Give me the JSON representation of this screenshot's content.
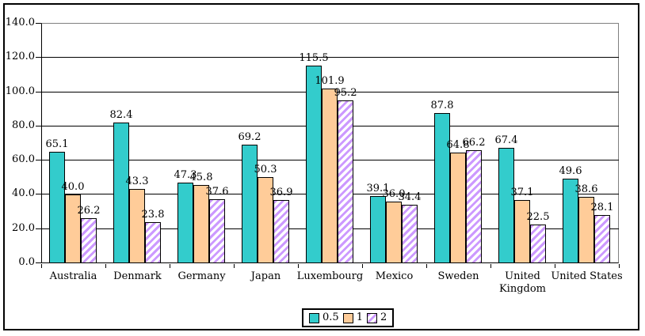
{
  "chart_data": {
    "type": "bar",
    "title": "",
    "xlabel": "",
    "ylabel": "",
    "categories": [
      "Australia",
      "Denmark",
      "Germany",
      "Japan",
      "Luxembourg",
      "Mexico",
      "Sweden",
      "United Kingdom",
      "United States"
    ],
    "xtick_labels": [
      "Australia",
      "Denmark",
      "Germany",
      "Japan",
      "Luxembourg",
      "Mexico",
      "Sweden",
      "United\nKingdom",
      "United States"
    ],
    "series": [
      {
        "name": "0.5",
        "color": "#33CCCC",
        "pattern": "solid",
        "values": [
          65.1,
          82.4,
          47.3,
          69.2,
          115.5,
          39.1,
          87.8,
          67.4,
          49.6
        ]
      },
      {
        "name": "1",
        "color": "#FFCC99",
        "pattern": "solid",
        "values": [
          40.0,
          43.3,
          45.8,
          50.3,
          101.9,
          36.0,
          64.8,
          37.1,
          38.6
        ]
      },
      {
        "name": "2",
        "color": "#CC99FF",
        "pattern": "diagonal-hatch",
        "values": [
          26.2,
          23.8,
          37.6,
          36.9,
          95.2,
          34.4,
          66.2,
          22.5,
          28.1
        ]
      }
    ],
    "ylim": [
      0,
      140
    ],
    "ytick_step": 20,
    "ytick_labels": [
      "0.0",
      "20.0",
      "40.0",
      "60.0",
      "80.0",
      "100.0",
      "120.0",
      "140.0"
    ],
    "grid": true,
    "data_labels": true,
    "data_label_decimals": 1,
    "legend": {
      "position": "bottom",
      "entries": [
        "0.5",
        "1",
        "2"
      ]
    }
  },
  "style": {
    "background": "#FFFFFF",
    "frame_color": "#000000",
    "axis_color": "#000000",
    "gridline_color": "#000000",
    "plot_border_color": "#808080",
    "hatch_background": "#FFFFFF"
  }
}
